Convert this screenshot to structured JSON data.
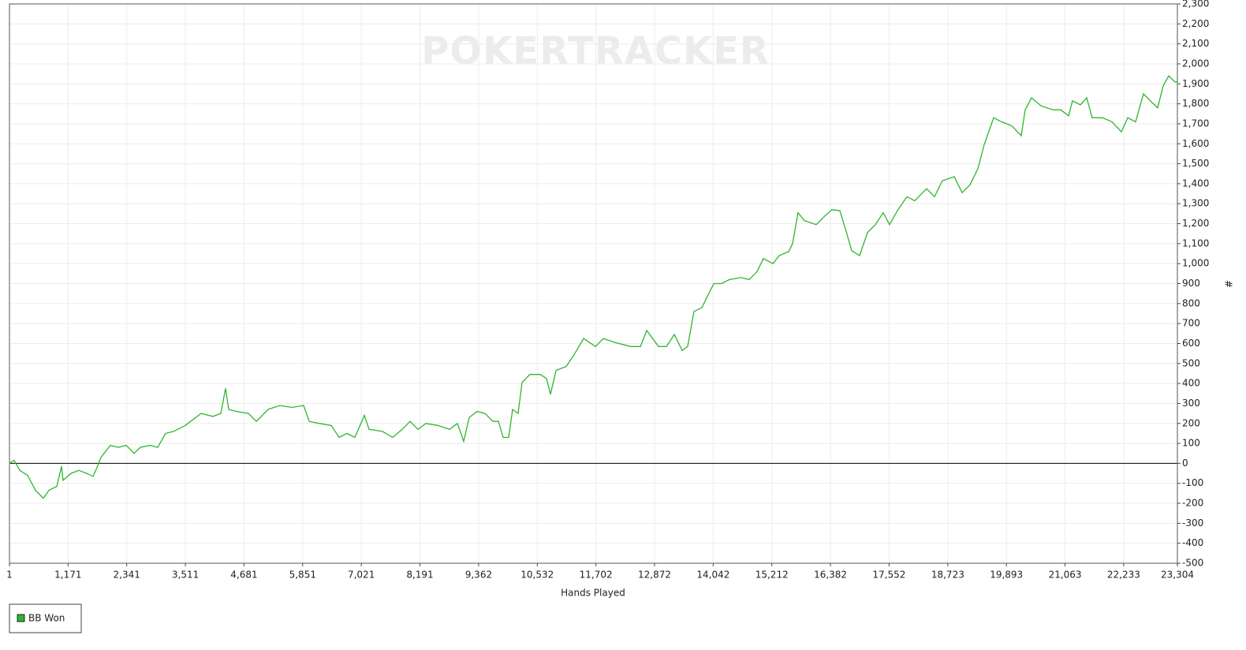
{
  "chart_data": {
    "type": "line",
    "watermark": "POKERTRACKER",
    "x_label": "Hands Played",
    "y_label": "#",
    "xlim": [
      1,
      23304
    ],
    "xticks": [
      1,
      {
        "value": 1171,
        "label": "1,171"
      },
      {
        "value": 2341,
        "label": "2,341"
      },
      {
        "value": 3511,
        "label": "3,511"
      },
      {
        "value": 4681,
        "label": "4,681"
      },
      {
        "value": 5851,
        "label": "5,851"
      },
      {
        "value": 7021,
        "label": "7,021"
      },
      {
        "value": 8191,
        "label": "8,191"
      },
      {
        "value": 9362,
        "label": "9,362"
      },
      {
        "value": 10532,
        "label": "10,532"
      },
      {
        "value": 11702,
        "label": "11,702"
      },
      {
        "value": 12872,
        "label": "12,872"
      },
      {
        "value": 14042,
        "label": "14,042"
      },
      {
        "value": 15212,
        "label": "15,212"
      },
      {
        "value": 16382,
        "label": "16,382"
      },
      {
        "value": 17552,
        "label": "17,552"
      },
      {
        "value": 18723,
        "label": "18,723"
      },
      {
        "value": 19893,
        "label": "19,893"
      },
      {
        "value": 21063,
        "label": "21,063"
      },
      {
        "value": 22233,
        "label": "22,233"
      },
      {
        "value": 23304,
        "label": "23,304"
      }
    ],
    "ylim": [
      -500,
      2300
    ],
    "yticks": [
      -500,
      -400,
      -300,
      -200,
      -100,
      0,
      100,
      200,
      300,
      400,
      500,
      600,
      700,
      800,
      900,
      {
        "value": 1000,
        "label": "1,000"
      },
      {
        "value": 1100,
        "label": "1,100"
      },
      {
        "value": 1200,
        "label": "1,200"
      },
      {
        "value": 1300,
        "label": "1,300"
      },
      {
        "value": 1400,
        "label": "1,400"
      },
      {
        "value": 1500,
        "label": "1,500"
      },
      {
        "value": 1600,
        "label": "1,600"
      },
      {
        "value": 1700,
        "label": "1,700"
      },
      {
        "value": 1800,
        "label": "1,800"
      },
      {
        "value": 1900,
        "label": "1,900"
      },
      {
        "value": 2000,
        "label": "2,000"
      },
      {
        "value": 2100,
        "label": "2,100"
      },
      {
        "value": 2200,
        "label": "2,200"
      },
      {
        "value": 2300,
        "label": "2,300"
      }
    ],
    "grid": true,
    "zero_line": true,
    "y_axis_side": "right",
    "legend": "bottom-left",
    "x": [
      1,
      95,
      205,
      363,
      520,
      677,
      788,
      945,
      1040,
      1071,
      1228,
      1386,
      1543,
      1669,
      1732,
      1826,
      2015,
      2172,
      2329,
      2487,
      2613,
      2802,
      2959,
      3116,
      3274,
      3510,
      3825,
      4061,
      4218,
      4312,
      4376,
      4533,
      4769,
      4926,
      5162,
      5398,
      5634,
      5870,
      5981,
      6185,
      6421,
      6578,
      6736,
      6893,
      7082,
      7176,
      7444,
      7648,
      7837,
      7994,
      8152,
      8309,
      8545,
      8781,
      8938,
      9064,
      9174,
      9331,
      9489,
      9646,
      9757,
      9851,
      9961,
      10040,
      10150,
      10229,
      10386,
      10591,
      10717,
      10795,
      10906,
      11110,
      11268,
      11457,
      11693,
      11850,
      12086,
      12401,
      12590,
      12716,
      12952,
      13109,
      13266,
      13424,
      13533,
      13659,
      13817,
      13895,
      14053,
      14210,
      14367,
      14603,
      14760,
      14918,
      15044,
      15233,
      15359,
      15548,
      15626,
      15736,
      15862,
      16098,
      16255,
      16413,
      16570,
      16680,
      16806,
      16963,
      17121,
      17278,
      17435,
      17561,
      17718,
      17907,
      18064,
      18300,
      18458,
      18615,
      18851,
      19008,
      19166,
      19323,
      19449,
      19638,
      19795,
      19999,
      20188,
      20267,
      20393,
      20582,
      20818,
      20975,
      21133,
      21211,
      21369,
      21495,
      21605,
      21810,
      21998,
      22187,
      22313,
      22470,
      22627,
      22785,
      22911,
      23021,
      23131,
      23256,
      23304
    ],
    "series": [
      {
        "name": "BB Won",
        "color": "#2fb52f",
        "values": [
          0,
          15,
          -35,
          -60,
          -135,
          -175,
          -135,
          -115,
          -15,
          -85,
          -50,
          -35,
          -50,
          -65,
          -30,
          30,
          90,
          80,
          90,
          50,
          80,
          90,
          80,
          150,
          160,
          190,
          250,
          235,
          250,
          375,
          270,
          260,
          250,
          210,
          270,
          290,
          280,
          290,
          210,
          200,
          190,
          130,
          150,
          130,
          240,
          170,
          160,
          130,
          170,
          210,
          170,
          200,
          190,
          170,
          200,
          110,
          230,
          260,
          250,
          210,
          210,
          130,
          130,
          270,
          250,
          405,
          445,
          445,
          425,
          345,
          465,
          485,
          545,
          625,
          585,
          625,
          605,
          585,
          585,
          665,
          585,
          585,
          645,
          565,
          585,
          760,
          780,
          820,
          900,
          900,
          920,
          930,
          920,
          960,
          1025,
          1000,
          1040,
          1060,
          1100,
          1255,
          1215,
          1195,
          1235,
          1270,
          1265,
          1175,
          1065,
          1040,
          1155,
          1195,
          1255,
          1195,
          1265,
          1335,
          1315,
          1375,
          1335,
          1415,
          1435,
          1355,
          1395,
          1475,
          1595,
          1730,
          1710,
          1690,
          1640,
          1770,
          1830,
          1790,
          1770,
          1770,
          1740,
          1815,
          1795,
          1830,
          1730,
          1730,
          1710,
          1660,
          1730,
          1710,
          1850,
          1810,
          1780,
          1890,
          1940,
          1910,
          1910
        ]
      }
    ]
  }
}
